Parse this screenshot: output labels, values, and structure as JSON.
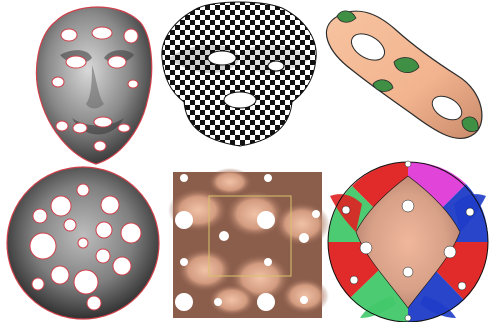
{
  "figure": {
    "panels": [
      {
        "id": "face-mesh-with-holes",
        "type": "rendered-surface",
        "colors": {
          "surface": "#8a8a8a",
          "boundary": "#d0404a"
        }
      },
      {
        "id": "checkerboard-surface",
        "type": "rendered-surface",
        "colors": {
          "dark": "#111111",
          "light": "#ffffff"
        }
      },
      {
        "id": "genus-two-surface",
        "type": "rendered-surface",
        "colors": {
          "surface": "#f2b48f",
          "patches": "#3f8f45",
          "outline": "#2b2b2b"
        }
      },
      {
        "id": "disk-parameterization",
        "type": "rendered-surface",
        "colors": {
          "surface": "#7f7f7f",
          "holes": "#ffffff",
          "boundary": "#d0404a"
        }
      },
      {
        "id": "periodic-tiling",
        "type": "rendered-surface",
        "colors": {
          "background": "#8b5e4c",
          "highlight": "#f5c3a6",
          "frame": "#d8c26a",
          "holes": "#ffffff"
        }
      },
      {
        "id": "hyperbolic-disk",
        "type": "rendered-surface",
        "colors": {
          "center": "#d8a188",
          "red": "#e02020",
          "blue": "#1e3cc8",
          "green": "#43c96b",
          "magenta": "#e03ad8",
          "white": "#ffffff"
        }
      }
    ]
  }
}
